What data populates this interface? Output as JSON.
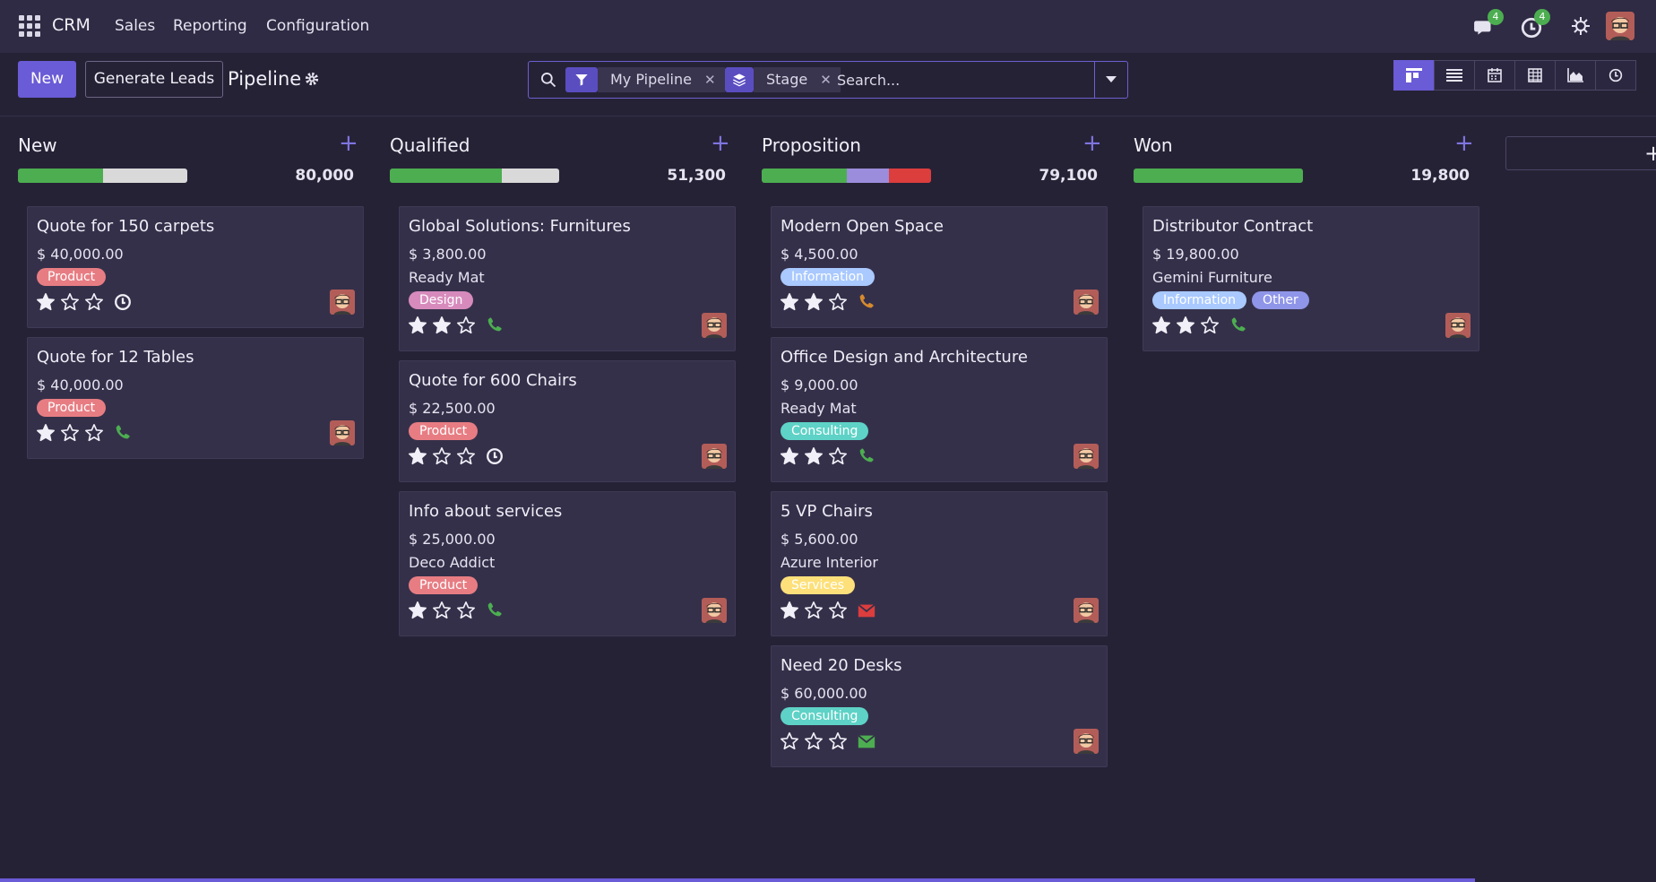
{
  "navbar": {
    "brand": "CRM",
    "menu": [
      "Sales",
      "Reporting",
      "Configuration"
    ],
    "messages_count": "4",
    "activities_count": "4"
  },
  "control_panel": {
    "new_label": "New",
    "generate_label": "Generate Leads",
    "breadcrumb": "Pipeline",
    "search": {
      "facets": [
        {
          "icon": "filter-icon",
          "value": "My Pipeline"
        },
        {
          "icon": "layers-icon",
          "value": "Stage"
        }
      ],
      "placeholder": "Search..."
    },
    "views": [
      "kanban",
      "list",
      "calendar",
      "pivot",
      "graph",
      "activity"
    ],
    "active_view": "kanban"
  },
  "colors": {
    "accent": "#6a5bd6",
    "progress_green": "#4cae50",
    "progress_grey": "#d9d9d9",
    "progress_purple": "#9b8ddb",
    "progress_red": "#dc3d3d",
    "tag_product": "#e77d83",
    "tag_design": "#d78bbd",
    "tag_information": "#a9c9ff",
    "tag_other": "#8f95e8",
    "tag_consulting": "#5ed2c6",
    "tag_services": "#fde07a"
  },
  "columns": [
    {
      "title": "New",
      "total": "80,000",
      "progress": [
        {
          "color": "#4cae50",
          "fraction": 0.5
        },
        {
          "color": "#d9d9d9",
          "fraction": 0.5
        }
      ],
      "cards": [
        {
          "title": "Quote for 150 carpets",
          "amount": "$ 40,000.00",
          "company": "",
          "tags": [
            {
              "label": "Product",
              "color": "#e77d83"
            }
          ],
          "stars": 1,
          "activity": "clock-icon"
        },
        {
          "title": "Quote for 12 Tables",
          "amount": "$ 40,000.00",
          "company": "",
          "tags": [
            {
              "label": "Product",
              "color": "#e77d83"
            }
          ],
          "stars": 1,
          "activity": "phone-icon"
        }
      ]
    },
    {
      "title": "Qualified",
      "total": "51,300",
      "progress": [
        {
          "color": "#4cae50",
          "fraction": 0.66
        },
        {
          "color": "#d9d9d9",
          "fraction": 0.34
        }
      ],
      "cards": [
        {
          "title": "Global Solutions: Furnitures",
          "amount": "$ 3,800.00",
          "company": "Ready Mat",
          "tags": [
            {
              "label": "Design",
              "color": "#d78bbd"
            }
          ],
          "stars": 2,
          "activity": "phone-icon"
        },
        {
          "title": "Quote for 600 Chairs",
          "amount": "$ 22,500.00",
          "company": "",
          "tags": [
            {
              "label": "Product",
              "color": "#e77d83"
            }
          ],
          "stars": 1,
          "activity": "clock-icon"
        },
        {
          "title": "Info about services",
          "amount": "$ 25,000.00",
          "company": "Deco Addict",
          "tags": [
            {
              "label": "Product",
              "color": "#e77d83"
            }
          ],
          "stars": 1,
          "activity": "phone-icon"
        }
      ]
    },
    {
      "title": "Proposition",
      "total": "79,100",
      "progress": [
        {
          "color": "#4cae50",
          "fraction": 0.5
        },
        {
          "color": "#9b8ddb",
          "fraction": 0.25
        },
        {
          "color": "#dc3d3d",
          "fraction": 0.25
        }
      ],
      "cards": [
        {
          "title": "Modern Open Space",
          "amount": "$ 4,500.00",
          "company": "",
          "tags": [
            {
              "label": "Information",
              "color": "#a9c9ff"
            }
          ],
          "stars": 2,
          "activity": "phone-orange-icon"
        },
        {
          "title": "Office Design and Architecture",
          "amount": "$ 9,000.00",
          "company": "Ready Mat",
          "tags": [
            {
              "label": "Consulting",
              "color": "#5ed2c6"
            }
          ],
          "stars": 2,
          "activity": "phone-icon"
        },
        {
          "title": "5 VP Chairs",
          "amount": "$ 5,600.00",
          "company": "Azure Interior",
          "tags": [
            {
              "label": "Services",
              "color": "#fde07a"
            }
          ],
          "stars": 1,
          "activity": "envelope-red-icon"
        },
        {
          "title": "Need 20 Desks",
          "amount": "$ 60,000.00",
          "company": "",
          "tags": [
            {
              "label": "Consulting",
              "color": "#5ed2c6"
            }
          ],
          "stars": 0,
          "activity": "envelope-green-icon"
        }
      ]
    },
    {
      "title": "Won",
      "total": "19,800",
      "progress": [
        {
          "color": "#4cae50",
          "fraction": 1.0
        }
      ],
      "cards": [
        {
          "title": "Distributor Contract",
          "amount": "$ 19,800.00",
          "company": "Gemini Furniture",
          "tags": [
            {
              "label": "Information",
              "color": "#a9c9ff"
            },
            {
              "label": "Other",
              "color": "#8f95e8"
            }
          ],
          "stars": 2,
          "activity": "phone-icon"
        }
      ]
    }
  ]
}
